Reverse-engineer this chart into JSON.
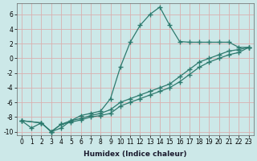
{
  "xlabel": "Humidex (Indice chaleur)",
  "bg_color": "#cce8e8",
  "grid_color": "#d9b0b0",
  "line_color": "#2d7a6e",
  "marker": "+",
  "marker_size": 4,
  "marker_lw": 1.0,
  "line_width": 0.9,
  "xlim": [
    -0.5,
    23.5
  ],
  "ylim": [
    -10.5,
    7.5
  ],
  "xticks": [
    0,
    1,
    2,
    3,
    4,
    5,
    6,
    7,
    8,
    9,
    10,
    11,
    12,
    13,
    14,
    15,
    16,
    17,
    18,
    19,
    20,
    21,
    22,
    23
  ],
  "yticks": [
    -10,
    -8,
    -6,
    -4,
    -2,
    0,
    2,
    4,
    6
  ],
  "tick_fontsize": 5.5,
  "xlabel_fontsize": 6.5,
  "series1_x": [
    0,
    1,
    2,
    3,
    4,
    5,
    6,
    7,
    8,
    9,
    10,
    11,
    12,
    13,
    14,
    15,
    16,
    17,
    18,
    19,
    20,
    21,
    22,
    23
  ],
  "series1_y": [
    -8.5,
    -9.5,
    -8.8,
    -10.0,
    -9.5,
    -8.5,
    -7.8,
    -7.5,
    -7.2,
    -5.5,
    -1.2,
    2.2,
    4.5,
    6.0,
    7.0,
    4.5,
    2.3,
    2.2,
    2.2,
    2.2,
    2.2,
    2.2,
    1.5,
    1.5
  ],
  "series2_x": [
    0,
    2,
    3,
    4,
    5,
    6,
    7,
    8,
    9,
    10,
    11,
    12,
    13,
    14,
    15,
    16,
    17,
    18,
    19,
    20,
    21,
    22,
    23
  ],
  "series2_y": [
    -8.5,
    -8.8,
    -10.0,
    -9.0,
    -8.5,
    -8.2,
    -7.8,
    -7.5,
    -7.0,
    -6.0,
    -5.5,
    -5.0,
    -4.5,
    -4.0,
    -3.5,
    -2.5,
    -1.5,
    -0.5,
    0.0,
    0.5,
    1.0,
    1.2,
    1.5
  ],
  "series3_x": [
    0,
    2,
    3,
    4,
    5,
    6,
    7,
    8,
    9,
    10,
    11,
    12,
    13,
    14,
    15,
    16,
    17,
    18,
    19,
    20,
    21,
    22,
    23
  ],
  "series3_y": [
    -8.5,
    -8.8,
    -10.0,
    -9.0,
    -8.7,
    -8.4,
    -8.0,
    -7.8,
    -7.5,
    -6.5,
    -6.0,
    -5.5,
    -5.0,
    -4.5,
    -4.0,
    -3.2,
    -2.2,
    -1.2,
    -0.5,
    0.0,
    0.5,
    0.8,
    1.5
  ]
}
